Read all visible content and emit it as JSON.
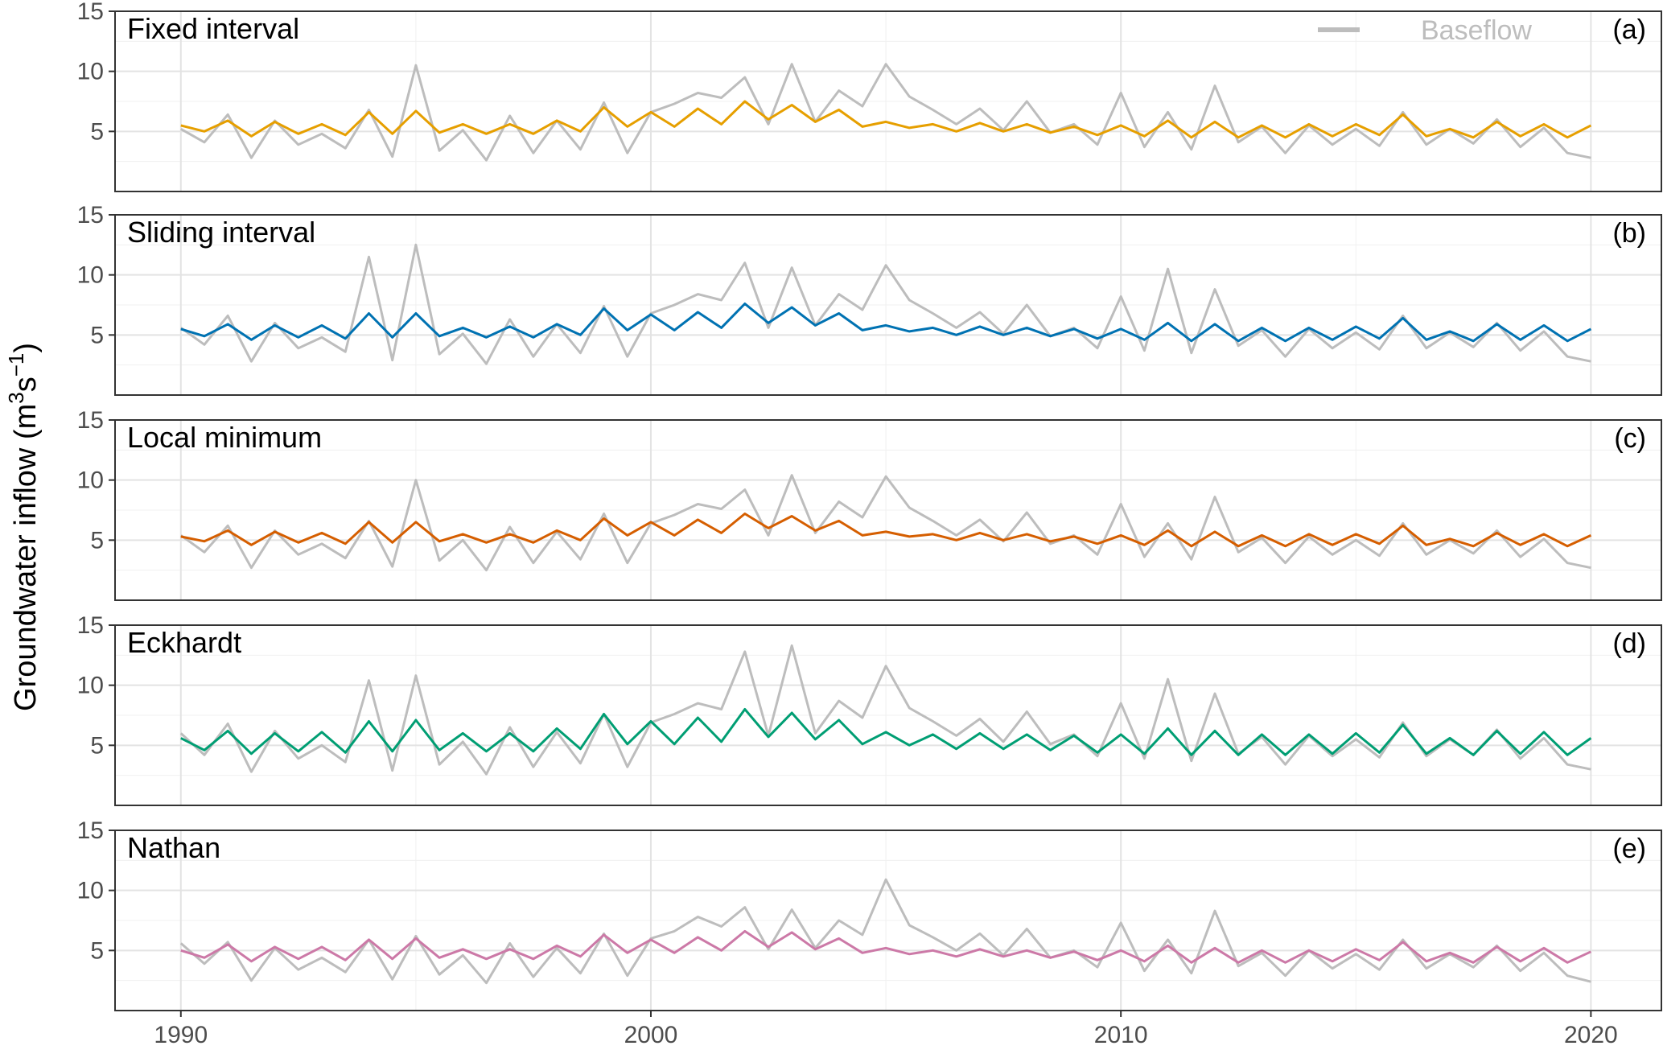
{
  "figure": {
    "ylabel": "Groundwater inflow (m",
    "ylabel_sup1": "3",
    "ylabel_mid": "s",
    "ylabel_sup2": "−1",
    "ylabel_end": ")",
    "legend_label": "Baseflow",
    "xticks": [
      "1990",
      "2000",
      "2010",
      "2020"
    ],
    "yticks": [
      "5",
      "10",
      "15"
    ]
  },
  "colors": {
    "baseflow": "#bdbdbd",
    "fixed_interval": "#E69F00",
    "sliding_interval": "#0072B2",
    "local_minimum": "#D55E00",
    "eckhardt": "#009E73",
    "nathan": "#CC79A7"
  },
  "chart_data": [
    {
      "type": "line",
      "panel_title": "Fixed interval",
      "panel_tag": "(a)",
      "xlim": [
        1988.6,
        2021.5
      ],
      "ylim": [
        0,
        15
      ],
      "x_years": [
        1990.0,
        1990.5,
        1991.0,
        1991.5,
        1992.0,
        1992.5,
        1993.0,
        1993.5,
        1994.0,
        1994.5,
        1995.0,
        1995.5,
        1996.0,
        1996.5,
        1997.0,
        1997.5,
        1998.0,
        1998.5,
        1999.0,
        1999.5,
        2000.0,
        2000.5,
        2001.0,
        2001.5,
        2002.0,
        2002.5,
        2003.0,
        2003.5,
        2004.0,
        2004.5,
        2005.0,
        2005.5,
        2006.0,
        2006.5,
        2007.0,
        2007.5,
        2008.0,
        2008.5,
        2009.0,
        2009.5,
        2010.0,
        2010.5,
        2011.0,
        2011.5,
        2012.0,
        2012.5,
        2013.0,
        2013.5,
        2014.0,
        2014.5,
        2015.0,
        2015.5,
        2016.0,
        2016.5,
        2017.0,
        2017.5,
        2018.0,
        2018.5,
        2019.0,
        2019.5,
        2020.0
      ],
      "series": [
        {
          "key": "fixed_interval",
          "values": [
            5.5,
            5.0,
            5.9,
            4.6,
            5.8,
            4.8,
            5.6,
            4.7,
            6.6,
            4.8,
            6.7,
            4.9,
            5.6,
            4.8,
            5.6,
            4.8,
            5.9,
            5.0,
            7.0,
            5.4,
            6.6,
            5.4,
            6.9,
            5.6,
            7.5,
            6.0,
            7.2,
            5.8,
            6.8,
            5.4,
            5.8,
            5.3,
            5.6,
            5.0,
            5.7,
            5.0,
            5.6,
            4.9,
            5.4,
            4.7,
            5.5,
            4.6,
            5.9,
            4.5,
            5.8,
            4.5,
            5.5,
            4.5,
            5.6,
            4.6,
            5.6,
            4.7,
            6.4,
            4.6,
            5.2,
            4.5,
            5.8,
            4.6,
            5.6,
            4.5,
            5.5
          ]
        },
        {
          "key": "baseflow",
          "name": "Baseflow",
          "values": [
            5.2,
            4.1,
            6.4,
            2.8,
            5.9,
            3.9,
            4.8,
            3.6,
            6.8,
            2.9,
            10.5,
            3.4,
            5.1,
            2.6,
            6.3,
            3.2,
            5.9,
            3.5,
            7.4,
            3.2,
            6.6,
            7.3,
            8.2,
            7.8,
            9.5,
            5.6,
            10.6,
            5.8,
            8.4,
            7.1,
            10.6,
            7.9,
            6.8,
            5.6,
            6.9,
            5.1,
            7.5,
            4.9,
            5.6,
            3.9,
            8.2,
            3.7,
            6.6,
            3.5,
            8.8,
            4.1,
            5.4,
            3.2,
            5.5,
            3.9,
            5.2,
            3.8,
            6.6,
            3.9,
            5.2,
            4.0,
            6.0,
            3.7,
            5.3,
            3.2,
            2.8
          ]
        }
      ]
    },
    {
      "type": "line",
      "panel_title": "Sliding interval",
      "panel_tag": "(b)",
      "xlim": [
        1988.6,
        2021.5
      ],
      "ylim": [
        0,
        15
      ],
      "x_years": [
        1990.0,
        1990.5,
        1991.0,
        1991.5,
        1992.0,
        1992.5,
        1993.0,
        1993.5,
        1994.0,
        1994.5,
        1995.0,
        1995.5,
        1996.0,
        1996.5,
        1997.0,
        1997.5,
        1998.0,
        1998.5,
        1999.0,
        1999.5,
        2000.0,
        2000.5,
        2001.0,
        2001.5,
        2002.0,
        2002.5,
        2003.0,
        2003.5,
        2004.0,
        2004.5,
        2005.0,
        2005.5,
        2006.0,
        2006.5,
        2007.0,
        2007.5,
        2008.0,
        2008.5,
        2009.0,
        2009.5,
        2010.0,
        2010.5,
        2011.0,
        2011.5,
        2012.0,
        2012.5,
        2013.0,
        2013.5,
        2014.0,
        2014.5,
        2015.0,
        2015.5,
        2016.0,
        2016.5,
        2017.0,
        2017.5,
        2018.0,
        2018.5,
        2019.0,
        2019.5,
        2020.0
      ],
      "series": [
        {
          "key": "sliding_interval",
          "values": [
            5.5,
            4.9,
            5.9,
            4.6,
            5.8,
            4.8,
            5.8,
            4.7,
            6.8,
            4.8,
            6.8,
            4.9,
            5.6,
            4.8,
            5.7,
            4.8,
            5.9,
            5.0,
            7.2,
            5.4,
            6.7,
            5.4,
            6.9,
            5.6,
            7.6,
            6.0,
            7.3,
            5.8,
            6.8,
            5.4,
            5.8,
            5.3,
            5.6,
            5.0,
            5.7,
            5.0,
            5.6,
            4.9,
            5.5,
            4.7,
            5.5,
            4.6,
            6.0,
            4.5,
            5.9,
            4.5,
            5.6,
            4.5,
            5.6,
            4.6,
            5.7,
            4.7,
            6.4,
            4.6,
            5.3,
            4.5,
            5.9,
            4.6,
            5.8,
            4.5,
            5.5
          ]
        },
        {
          "key": "baseflow",
          "name": "Baseflow",
          "values": [
            5.6,
            4.2,
            6.6,
            2.8,
            6.0,
            3.9,
            4.8,
            3.6,
            11.5,
            2.9,
            12.5,
            3.4,
            5.1,
            2.6,
            6.3,
            3.2,
            5.9,
            3.5,
            7.4,
            3.2,
            6.8,
            7.5,
            8.4,
            7.9,
            11.0,
            5.6,
            10.6,
            5.8,
            8.4,
            7.1,
            10.8,
            7.9,
            6.8,
            5.6,
            6.9,
            5.1,
            7.5,
            4.9,
            5.6,
            3.9,
            8.2,
            3.7,
            10.5,
            3.5,
            8.8,
            4.1,
            5.4,
            3.2,
            5.5,
            3.9,
            5.2,
            3.8,
            6.6,
            3.9,
            5.2,
            4.0,
            6.0,
            3.7,
            5.3,
            3.2,
            2.8
          ]
        }
      ]
    },
    {
      "type": "line",
      "panel_title": "Local minimum",
      "panel_tag": "(c)",
      "xlim": [
        1988.6,
        2021.5
      ],
      "ylim": [
        0,
        15
      ],
      "x_years": [
        1990.0,
        1990.5,
        1991.0,
        1991.5,
        1992.0,
        1992.5,
        1993.0,
        1993.5,
        1994.0,
        1994.5,
        1995.0,
        1995.5,
        1996.0,
        1996.5,
        1997.0,
        1997.5,
        1998.0,
        1998.5,
        1999.0,
        1999.5,
        2000.0,
        2000.5,
        2001.0,
        2001.5,
        2002.0,
        2002.5,
        2003.0,
        2003.5,
        2004.0,
        2004.5,
        2005.0,
        2005.5,
        2006.0,
        2006.5,
        2007.0,
        2007.5,
        2008.0,
        2008.5,
        2009.0,
        2009.5,
        2010.0,
        2010.5,
        2011.0,
        2011.5,
        2012.0,
        2012.5,
        2013.0,
        2013.5,
        2014.0,
        2014.5,
        2015.0,
        2015.5,
        2016.0,
        2016.5,
        2017.0,
        2017.5,
        2018.0,
        2018.5,
        2019.0,
        2019.5,
        2020.0
      ],
      "series": [
        {
          "key": "local_minimum",
          "values": [
            5.3,
            4.9,
            5.8,
            4.6,
            5.7,
            4.8,
            5.6,
            4.7,
            6.5,
            4.8,
            6.5,
            4.9,
            5.5,
            4.8,
            5.5,
            4.8,
            5.8,
            5.0,
            6.8,
            5.4,
            6.5,
            5.4,
            6.7,
            5.6,
            7.2,
            6.0,
            7.0,
            5.8,
            6.6,
            5.4,
            5.7,
            5.3,
            5.5,
            5.0,
            5.6,
            5.0,
            5.5,
            4.9,
            5.3,
            4.7,
            5.4,
            4.6,
            5.8,
            4.5,
            5.7,
            4.5,
            5.4,
            4.5,
            5.5,
            4.6,
            5.5,
            4.7,
            6.2,
            4.6,
            5.1,
            4.5,
            5.6,
            4.6,
            5.5,
            4.5,
            5.4
          ]
        },
        {
          "key": "baseflow",
          "name": "Baseflow",
          "values": [
            5.4,
            4.0,
            6.2,
            2.7,
            5.8,
            3.8,
            4.7,
            3.5,
            6.6,
            2.8,
            10.0,
            3.3,
            5.0,
            2.5,
            6.1,
            3.1,
            5.7,
            3.4,
            7.2,
            3.1,
            6.4,
            7.1,
            8.0,
            7.6,
            9.2,
            5.4,
            10.4,
            5.6,
            8.2,
            6.9,
            10.3,
            7.7,
            6.6,
            5.4,
            6.7,
            4.9,
            7.3,
            4.7,
            5.4,
            3.8,
            8.0,
            3.6,
            6.4,
            3.4,
            8.6,
            4.0,
            5.2,
            3.1,
            5.3,
            3.8,
            5.0,
            3.7,
            6.4,
            3.8,
            5.0,
            3.9,
            5.8,
            3.6,
            5.1,
            3.1,
            2.7
          ]
        }
      ]
    },
    {
      "type": "line",
      "panel_title": "Eckhardt",
      "panel_tag": "(d)",
      "xlim": [
        1988.6,
        2021.5
      ],
      "ylim": [
        0,
        15
      ],
      "x_years": [
        1990.0,
        1990.5,
        1991.0,
        1991.5,
        1992.0,
        1992.5,
        1993.0,
        1993.5,
        1994.0,
        1994.5,
        1995.0,
        1995.5,
        1996.0,
        1996.5,
        1997.0,
        1997.5,
        1998.0,
        1998.5,
        1999.0,
        1999.5,
        2000.0,
        2000.5,
        2001.0,
        2001.5,
        2002.0,
        2002.5,
        2003.0,
        2003.5,
        2004.0,
        2004.5,
        2005.0,
        2005.5,
        2006.0,
        2006.5,
        2007.0,
        2007.5,
        2008.0,
        2008.5,
        2009.0,
        2009.5,
        2010.0,
        2010.5,
        2011.0,
        2011.5,
        2012.0,
        2012.5,
        2013.0,
        2013.5,
        2014.0,
        2014.5,
        2015.0,
        2015.5,
        2016.0,
        2016.5,
        2017.0,
        2017.5,
        2018.0,
        2018.5,
        2019.0,
        2019.5,
        2020.0
      ],
      "series": [
        {
          "key": "eckhardt",
          "values": [
            5.6,
            4.6,
            6.2,
            4.3,
            6.0,
            4.5,
            6.1,
            4.4,
            7.0,
            4.5,
            7.1,
            4.6,
            6.0,
            4.5,
            6.0,
            4.5,
            6.4,
            4.7,
            7.6,
            5.1,
            7.0,
            5.1,
            7.3,
            5.3,
            8.0,
            5.7,
            7.7,
            5.5,
            7.1,
            5.1,
            6.1,
            5.0,
            5.9,
            4.7,
            6.0,
            4.7,
            5.9,
            4.6,
            5.8,
            4.4,
            5.9,
            4.3,
            6.4,
            4.2,
            6.2,
            4.2,
            5.9,
            4.2,
            5.9,
            4.3,
            6.0,
            4.4,
            6.7,
            4.3,
            5.6,
            4.2,
            6.2,
            4.3,
            6.1,
            4.2,
            5.6
          ]
        },
        {
          "key": "baseflow",
          "name": "Baseflow",
          "values": [
            6.0,
            4.2,
            6.8,
            2.8,
            6.2,
            3.9,
            5.0,
            3.6,
            10.4,
            2.9,
            10.8,
            3.4,
            5.3,
            2.6,
            6.5,
            3.2,
            6.1,
            3.5,
            7.6,
            3.2,
            6.9,
            7.6,
            8.5,
            8.0,
            12.8,
            5.8,
            13.3,
            6.0,
            8.7,
            7.3,
            11.6,
            8.1,
            7.0,
            5.8,
            7.2,
            5.3,
            7.8,
            5.1,
            5.9,
            4.1,
            8.5,
            3.9,
            10.5,
            3.7,
            9.3,
            4.3,
            5.7,
            3.4,
            5.8,
            4.1,
            5.5,
            4.0,
            6.9,
            4.1,
            5.5,
            4.2,
            6.3,
            3.9,
            5.6,
            3.4,
            3.0
          ]
        }
      ]
    },
    {
      "type": "line",
      "panel_title": "Nathan",
      "panel_tag": "(e)",
      "xlim": [
        1988.6,
        2021.5
      ],
      "ylim": [
        0,
        15
      ],
      "x_years": [
        1990.0,
        1990.5,
        1991.0,
        1991.5,
        1992.0,
        1992.5,
        1993.0,
        1993.5,
        1994.0,
        1994.5,
        1995.0,
        1995.5,
        1996.0,
        1996.5,
        1997.0,
        1997.5,
        1998.0,
        1998.5,
        1999.0,
        1999.5,
        2000.0,
        2000.5,
        2001.0,
        2001.5,
        2002.0,
        2002.5,
        2003.0,
        2003.5,
        2004.0,
        2004.5,
        2005.0,
        2005.5,
        2006.0,
        2006.5,
        2007.0,
        2007.5,
        2008.0,
        2008.5,
        2009.0,
        2009.5,
        2010.0,
        2010.5,
        2011.0,
        2011.5,
        2012.0,
        2012.5,
        2013.0,
        2013.5,
        2014.0,
        2014.5,
        2015.0,
        2015.5,
        2016.0,
        2016.5,
        2017.0,
        2017.5,
        2018.0,
        2018.5,
        2019.0,
        2019.5,
        2020.0
      ],
      "series": [
        {
          "key": "nathan",
          "values": [
            5.0,
            4.4,
            5.5,
            4.1,
            5.3,
            4.3,
            5.3,
            4.2,
            5.9,
            4.3,
            6.0,
            4.4,
            5.1,
            4.3,
            5.1,
            4.3,
            5.4,
            4.5,
            6.3,
            4.8,
            5.9,
            4.8,
            6.1,
            5.0,
            6.6,
            5.3,
            6.5,
            5.1,
            6.0,
            4.8,
            5.2,
            4.7,
            5.0,
            4.5,
            5.1,
            4.5,
            5.0,
            4.4,
            4.9,
            4.2,
            5.0,
            4.1,
            5.4,
            4.0,
            5.2,
            4.0,
            5.0,
            4.0,
            5.0,
            4.1,
            5.1,
            4.2,
            5.7,
            4.1,
            4.8,
            4.0,
            5.3,
            4.1,
            5.2,
            4.0,
            4.9
          ]
        },
        {
          "key": "baseflow",
          "name": "Baseflow",
          "values": [
            5.6,
            3.9,
            5.7,
            2.5,
            5.2,
            3.4,
            4.4,
            3.2,
            5.9,
            2.6,
            6.2,
            3.0,
            4.6,
            2.3,
            5.6,
            2.8,
            5.2,
            3.1,
            6.4,
            2.9,
            6.0,
            6.6,
            7.8,
            7.0,
            8.6,
            5.1,
            8.4,
            5.2,
            7.5,
            6.3,
            10.9,
            7.1,
            6.1,
            5.0,
            6.4,
            4.6,
            6.8,
            4.4,
            5.0,
            3.6,
            7.3,
            3.3,
            5.9,
            3.1,
            8.3,
            3.7,
            4.8,
            2.9,
            5.0,
            3.5,
            4.7,
            3.4,
            5.9,
            3.5,
            4.7,
            3.6,
            5.4,
            3.3,
            4.8,
            2.9,
            2.4
          ]
        }
      ]
    }
  ]
}
